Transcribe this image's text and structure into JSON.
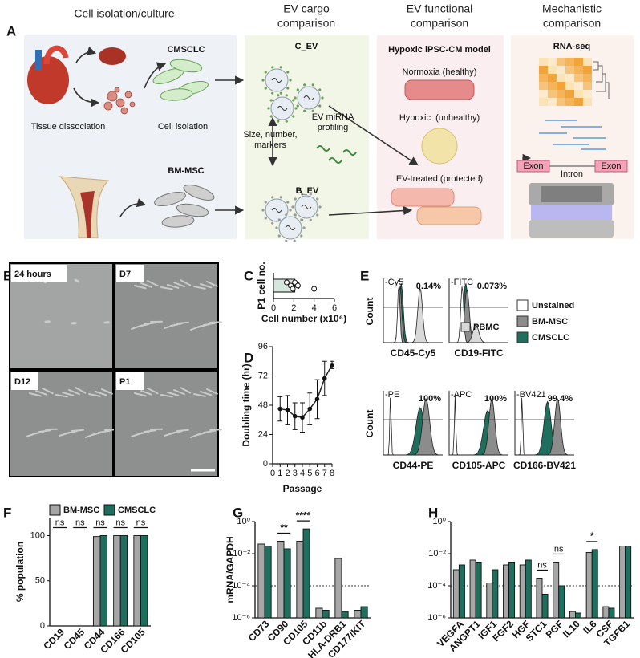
{
  "panel_labels": [
    "A",
    "B",
    "C",
    "D",
    "E",
    "F",
    "G",
    "H"
  ],
  "workflow": {
    "headers": [
      [
        "Cell isolation/culture"
      ],
      [
        "EV cargo",
        "comparison"
      ],
      [
        "EV functional",
        "comparison"
      ],
      [
        "Mechanistic",
        "comparison"
      ]
    ],
    "tissue_dissociation": "Tissue dissociation",
    "cell_isolation": "Cell isolation",
    "cmsclc": "CMSCLC",
    "bm_msc": "BM-MSC",
    "c_ev": "C_EV",
    "b_ev": "B_EV",
    "size_markers": [
      "Size, number,",
      "markers"
    ],
    "mirna": [
      "EV miRNA",
      "profiling"
    ],
    "model": "Hypoxic iPSC-CM model",
    "normoxia": "Normoxia (healthy)",
    "hypoxic": "Hypoxic  (unhealthy)",
    "treated": "EV-treated (protected)",
    "rnaseq": "RNA-seq",
    "exon": "Exon",
    "intron": "Intron"
  },
  "micrographs": [
    "24 hours",
    "D7",
    "D12",
    "P1"
  ],
  "flow": {
    "panels": [
      {
        "channel": "-Cy5",
        "label": "CD45-Cy5",
        "percent": "0.14%"
      },
      {
        "channel": "-FITC",
        "label": "CD19-FITC",
        "percent": "0.073%"
      },
      {
        "channel": "-PE",
        "label": "CD44-PE",
        "percent": "100%"
      },
      {
        "channel": "-APC",
        "label": "CD105-APC",
        "percent": "100%"
      },
      {
        "channel": "-BV421",
        "label": "CD166-BV421",
        "percent": "99.4%"
      }
    ],
    "count": "Count",
    "pbmc": "PBMC",
    "legend": [
      {
        "name": "Unstained",
        "color": "#ffffff"
      },
      {
        "name": "BM-MSC",
        "color": "#8c8c8c"
      },
      {
        "name": "CMSCLC",
        "color": "#1f6f5f"
      }
    ]
  },
  "chart_data": [
    {
      "type": "hbar",
      "ylabel": "P1 cell no.",
      "xlabel": "Cell number (x10⁶)",
      "values": [
        2.1
      ],
      "errors": [
        0.4
      ],
      "points": [
        1.3,
        1.7,
        1.9,
        2.1,
        2.4,
        4.0
      ],
      "color": "#d5e6de",
      "xlim": [
        0,
        6
      ],
      "xticks": [
        0,
        2,
        4,
        6
      ]
    },
    {
      "type": "line",
      "xlabel": "Passage",
      "ylabel": "Doubling time (hr)",
      "x": [
        1,
        2,
        3,
        4,
        5,
        6,
        7,
        8
      ],
      "values": [
        45,
        44,
        39,
        38,
        45,
        53,
        70,
        81
      ],
      "errors": [
        10,
        12,
        11,
        12,
        13,
        16,
        14,
        3
      ],
      "color": "#222222",
      "xlim": [
        0,
        8
      ],
      "xticks": [
        0,
        1,
        2,
        3,
        4,
        5,
        6,
        7,
        8
      ],
      "ylim": [
        0,
        96
      ],
      "yticks": [
        0,
        24,
        48,
        72,
        96
      ]
    },
    {
      "type": "grouped_bar",
      "ylabel": "% population",
      "categories": [
        "CD19",
        "CD45",
        "CD44",
        "CD166",
        "CD105"
      ],
      "series": [
        {
          "name": "BM-MSC",
          "color": "#a6a6a6",
          "values": [
            0,
            0,
            99,
            100,
            100
          ]
        },
        {
          "name": "CMSCLC",
          "color": "#1f6f5f",
          "values": [
            0,
            0,
            100,
            100,
            100
          ]
        }
      ],
      "ylim": [
        0,
        120
      ],
      "yticks": [
        0,
        50,
        100
      ],
      "legend": "top",
      "annotations": [
        {
          "category": "CD19",
          "text": "ns"
        },
        {
          "category": "CD45",
          "text": "ns"
        },
        {
          "category": "CD44",
          "text": "ns"
        },
        {
          "category": "CD166",
          "text": "ns"
        },
        {
          "category": "CD105",
          "text": "ns"
        }
      ]
    },
    {
      "type": "grouped_bar",
      "log": true,
      "ylabel": "mRNA/GAPDH",
      "categories": [
        "CD73",
        "CD90",
        "CD105",
        "CD11b",
        "HLA-DRB1",
        "CD177/KIT"
      ],
      "series": [
        {
          "name": "BM-MSC",
          "color": "#a6a6a6",
          "values": [
            0.04,
            0.06,
            0.06,
            4e-06,
            0.005,
            3e-06
          ]
        },
        {
          "name": "CMSCLC",
          "color": "#1f6f5f",
          "values": [
            0.03,
            0.02,
            0.35,
            3e-06,
            2.5e-06,
            5e-06
          ]
        }
      ],
      "ylim": [
        1e-06,
        1
      ],
      "yticks": [
        {
          "value": 1,
          "label": "10⁰"
        },
        {
          "value": 0.01,
          "label": "10⁻²"
        },
        {
          "value": 0.0001,
          "label": "10⁻⁴"
        },
        {
          "value": 1e-06,
          "label": "10⁻⁶"
        }
      ],
      "hline": 0.0001,
      "annotations": [
        {
          "category": "CD90",
          "text": "**"
        },
        {
          "category": "CD105",
          "text": "****"
        }
      ]
    },
    {
      "type": "grouped_bar",
      "log": true,
      "categories": [
        "VEGFA",
        "ANGPT1",
        "IGF1",
        "FGF2",
        "HGF",
        "STC1",
        "PGF",
        "IL10",
        "IL6",
        "CSF",
        "TGFB1"
      ],
      "series": [
        {
          "name": "BM-MSC",
          "color": "#a6a6a6",
          "values": [
            0.001,
            0.004,
            0.00015,
            0.002,
            0.002,
            0.0003,
            0.003,
            2.5e-06,
            0.012,
            5e-06,
            0.03
          ]
        },
        {
          "name": "CMSCLC",
          "color": "#1f6f5f",
          "values": [
            0.002,
            0.003,
            0.001,
            0.003,
            0.004,
            3e-05,
            0.0001,
            2e-06,
            0.018,
            4e-06,
            0.03
          ]
        }
      ],
      "ylim": [
        1e-06,
        1
      ],
      "yticks": [
        {
          "value": 1,
          "label": "10⁰"
        },
        {
          "value": 0.01,
          "label": "10⁻²"
        },
        {
          "value": 0.0001,
          "label": "10⁻⁴"
        },
        {
          "value": 1e-06,
          "label": "10⁻⁶"
        }
      ],
      "hline": 0.0001,
      "annotations": [
        {
          "category": "STC1",
          "text": "ns"
        },
        {
          "category": "PGF",
          "text": "ns"
        },
        {
          "category": "IL6",
          "text": "*"
        }
      ]
    }
  ]
}
